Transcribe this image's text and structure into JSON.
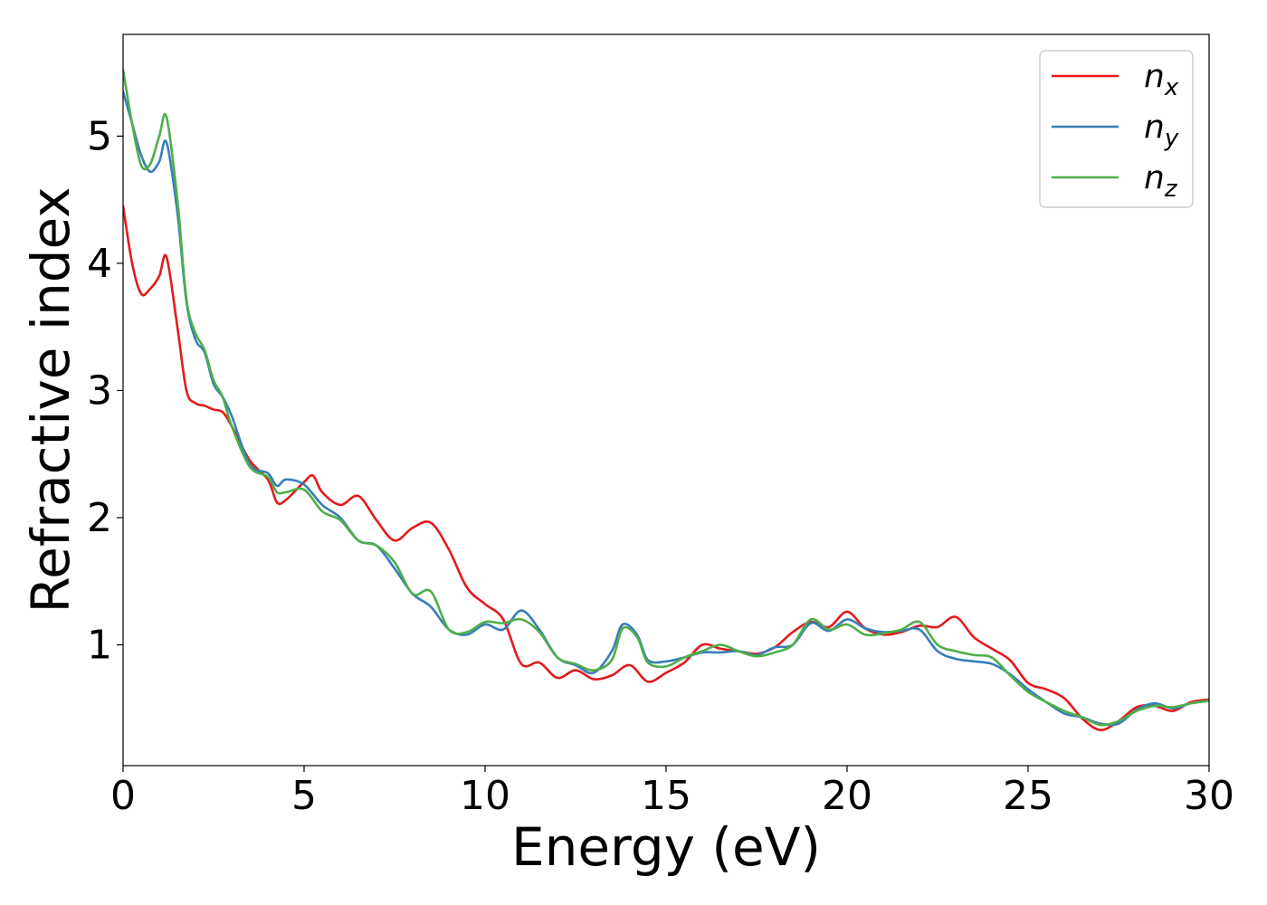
{
  "chart_data": {
    "type": "line",
    "title": "",
    "xlabel": "Energy (eV)",
    "ylabel": "Refractive index",
    "xlim": [
      0,
      30
    ],
    "ylim": [
      0.05,
      5.8
    ],
    "xticks": [
      0,
      5,
      10,
      15,
      20,
      25,
      30
    ],
    "yticks": [
      1,
      2,
      3,
      4,
      5
    ],
    "grid": false,
    "legend": "top-right",
    "series": [
      {
        "name": "n",
        "subscript": "x",
        "color": "#e41a1c",
        "x": [
          0,
          0.25,
          0.5,
          0.75,
          1.0,
          1.2,
          1.5,
          1.75,
          2.0,
          2.25,
          2.5,
          2.75,
          3.0,
          3.5,
          4.0,
          4.25,
          4.5,
          5.0,
          5.25,
          5.5,
          6.0,
          6.5,
          7.0,
          7.5,
          8.0,
          8.5,
          9.0,
          9.5,
          10.0,
          10.5,
          11.0,
          11.5,
          12.0,
          12.5,
          13.0,
          13.5,
          14.0,
          14.5,
          15.0,
          15.5,
          16.0,
          16.5,
          17.0,
          17.5,
          18.0,
          18.5,
          19.0,
          19.5,
          20.0,
          20.5,
          21.0,
          21.5,
          22.0,
          22.5,
          23.0,
          23.5,
          24.0,
          24.5,
          25.0,
          25.5,
          26.0,
          26.5,
          27.0,
          27.5,
          28.0,
          28.5,
          29.0,
          29.5,
          30.0
        ],
        "values": [
          4.45,
          4.0,
          3.76,
          3.8,
          3.9,
          4.05,
          3.5,
          3.0,
          2.9,
          2.88,
          2.85,
          2.83,
          2.72,
          2.45,
          2.3,
          2.12,
          2.14,
          2.28,
          2.33,
          2.2,
          2.1,
          2.17,
          1.98,
          1.82,
          1.92,
          1.96,
          1.75,
          1.45,
          1.32,
          1.2,
          0.85,
          0.86,
          0.74,
          0.8,
          0.73,
          0.76,
          0.84,
          0.71,
          0.78,
          0.86,
          1.0,
          0.97,
          0.95,
          0.93,
          0.98,
          1.1,
          1.18,
          1.14,
          1.26,
          1.13,
          1.08,
          1.1,
          1.15,
          1.14,
          1.22,
          1.06,
          0.97,
          0.88,
          0.7,
          0.65,
          0.58,
          0.42,
          0.33,
          0.4,
          0.51,
          0.52,
          0.48,
          0.55,
          0.57
        ]
      },
      {
        "name": "n",
        "subscript": "y",
        "color": "#377eb8",
        "x": [
          0,
          0.25,
          0.5,
          0.75,
          1.0,
          1.2,
          1.5,
          1.75,
          2.0,
          2.25,
          2.5,
          2.75,
          3.0,
          3.5,
          4.0,
          4.25,
          4.5,
          5.0,
          5.5,
          6.0,
          6.5,
          7.0,
          7.5,
          8.0,
          8.5,
          9.0,
          9.5,
          10.0,
          10.5,
          11.0,
          11.5,
          12.0,
          12.5,
          13.0,
          13.5,
          13.8,
          14.2,
          14.5,
          15.0,
          15.5,
          16.0,
          16.5,
          17.0,
          17.5,
          18.0,
          18.5,
          19.0,
          19.5,
          20.0,
          20.5,
          21.0,
          21.5,
          22.0,
          22.5,
          23.0,
          23.5,
          24.0,
          24.5,
          25.0,
          25.5,
          26.0,
          26.5,
          27.0,
          27.5,
          28.0,
          28.5,
          29.0,
          29.5,
          30.0
        ],
        "values": [
          5.35,
          5.1,
          4.85,
          4.72,
          4.8,
          4.95,
          4.4,
          3.7,
          3.4,
          3.3,
          3.05,
          2.95,
          2.8,
          2.42,
          2.35,
          2.25,
          2.3,
          2.26,
          2.1,
          2.0,
          1.82,
          1.78,
          1.6,
          1.4,
          1.3,
          1.12,
          1.08,
          1.16,
          1.12,
          1.27,
          1.12,
          0.9,
          0.84,
          0.78,
          0.95,
          1.16,
          1.08,
          0.88,
          0.87,
          0.9,
          0.94,
          0.94,
          0.95,
          0.92,
          0.98,
          1.0,
          1.17,
          1.11,
          1.2,
          1.13,
          1.1,
          1.11,
          1.12,
          0.95,
          0.89,
          0.87,
          0.85,
          0.77,
          0.65,
          0.55,
          0.46,
          0.43,
          0.38,
          0.38,
          0.49,
          0.54,
          0.5,
          0.54,
          0.56
        ]
      },
      {
        "name": "n",
        "subscript": "z",
        "color": "#4daf4a",
        "x": [
          0,
          0.25,
          0.5,
          0.75,
          1.0,
          1.2,
          1.5,
          1.75,
          2.0,
          2.25,
          2.5,
          2.75,
          3.0,
          3.5,
          4.0,
          4.25,
          4.5,
          5.0,
          5.5,
          6.0,
          6.5,
          7.0,
          7.5,
          8.0,
          8.5,
          9.0,
          9.5,
          10.0,
          10.5,
          11.0,
          11.5,
          12.0,
          12.5,
          13.0,
          13.5,
          13.8,
          14.2,
          14.5,
          15.0,
          15.5,
          16.0,
          16.5,
          17.0,
          17.5,
          18.0,
          18.5,
          19.0,
          19.5,
          20.0,
          20.5,
          21.0,
          21.5,
          22.0,
          22.5,
          23.0,
          23.5,
          24.0,
          24.5,
          25.0,
          25.5,
          26.0,
          26.5,
          27.0,
          27.5,
          28.0,
          28.5,
          29.0,
          29.5,
          30.0
        ],
        "values": [
          5.52,
          5.1,
          4.77,
          4.78,
          5.0,
          5.15,
          4.5,
          3.72,
          3.45,
          3.32,
          3.08,
          2.95,
          2.72,
          2.4,
          2.32,
          2.2,
          2.2,
          2.22,
          2.05,
          1.98,
          1.82,
          1.78,
          1.65,
          1.4,
          1.42,
          1.12,
          1.1,
          1.18,
          1.17,
          1.2,
          1.1,
          0.9,
          0.85,
          0.8,
          0.88,
          1.13,
          1.06,
          0.86,
          0.83,
          0.9,
          0.95,
          1.0,
          0.95,
          0.91,
          0.94,
          1.0,
          1.2,
          1.12,
          1.16,
          1.08,
          1.09,
          1.12,
          1.18,
          1.0,
          0.95,
          0.92,
          0.9,
          0.76,
          0.63,
          0.55,
          0.48,
          0.43,
          0.37,
          0.4,
          0.48,
          0.52,
          0.51,
          0.54,
          0.56
        ]
      }
    ]
  }
}
